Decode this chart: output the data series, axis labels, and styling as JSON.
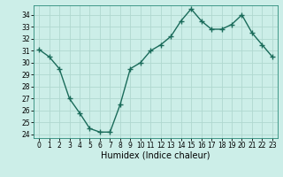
{
  "x": [
    0,
    1,
    2,
    3,
    4,
    5,
    6,
    7,
    8,
    9,
    10,
    11,
    12,
    13,
    14,
    15,
    16,
    17,
    18,
    19,
    20,
    21,
    22,
    23
  ],
  "y": [
    31.1,
    30.5,
    29.5,
    27.0,
    25.8,
    24.5,
    24.2,
    24.2,
    26.5,
    29.5,
    30.0,
    31.0,
    31.5,
    32.2,
    33.5,
    34.5,
    33.5,
    32.8,
    32.8,
    33.2,
    34.0,
    32.5,
    31.5,
    30.5
  ],
  "xlim": [
    -0.5,
    23.5
  ],
  "ylim": [
    23.7,
    34.8
  ],
  "yticks": [
    24,
    25,
    26,
    27,
    28,
    29,
    30,
    31,
    32,
    33,
    34
  ],
  "xticks": [
    0,
    1,
    2,
    3,
    4,
    5,
    6,
    7,
    8,
    9,
    10,
    11,
    12,
    13,
    14,
    15,
    16,
    17,
    18,
    19,
    20,
    21,
    22,
    23
  ],
  "xlabel": "Humidex (Indice chaleur)",
  "line_color": "#1a6b5a",
  "marker": "+",
  "marker_size": 4,
  "line_width": 1.0,
  "bg_color": "#cceee8",
  "grid_color": "#b0d8d0",
  "tick_label_fontsize": 5.5,
  "xlabel_fontsize": 7
}
